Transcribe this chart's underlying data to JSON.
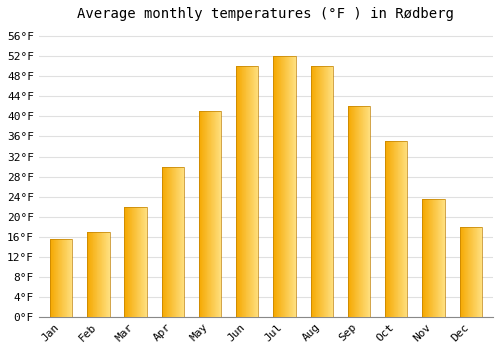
{
  "title": "Average monthly temperatures (°F ) in Rødberg",
  "months": [
    "Jan",
    "Feb",
    "Mar",
    "Apr",
    "May",
    "Jun",
    "Jul",
    "Aug",
    "Sep",
    "Oct",
    "Nov",
    "Dec"
  ],
  "values": [
    15.5,
    17.0,
    22.0,
    30.0,
    41.0,
    50.0,
    52.0,
    50.0,
    42.0,
    35.0,
    23.5,
    18.0
  ],
  "bar_color_left": "#F5A800",
  "bar_color_right": "#FFE080",
  "background_color": "#FFFFFF",
  "grid_color": "#E0E0E0",
  "ylim": [
    0,
    58
  ],
  "ytick_step": 4,
  "title_fontsize": 10,
  "tick_fontsize": 8,
  "font_family": "monospace"
}
